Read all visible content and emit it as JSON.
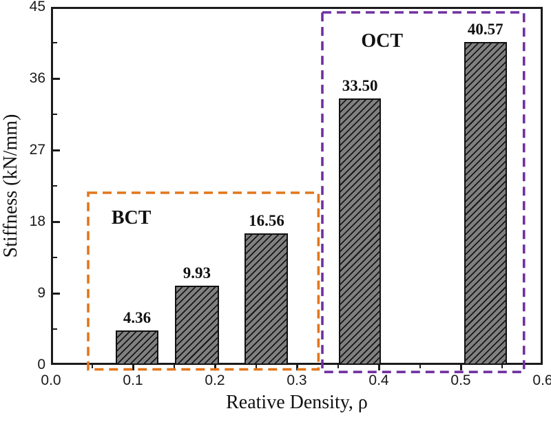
{
  "figure": {
    "background": "#ffffff",
    "frame_color": "#1a1a1a"
  },
  "chart_data": {
    "type": "bar",
    "title": "",
    "xlabel": "Reative Density, ρ",
    "ylabel": "Stiffness (kN/mm)",
    "xlim": [
      0.0,
      0.6
    ],
    "ylim": [
      0,
      45
    ],
    "grid": false,
    "legend": "none",
    "x_tick_values": [
      0.0,
      0.1,
      0.2,
      0.3,
      0.4,
      0.5,
      0.6
    ],
    "x_tick_labels": [
      "0.0",
      "0.1",
      "0.2",
      "0.3",
      "0.4",
      "0.5",
      "0.6"
    ],
    "x_minor_tick_values": [
      0.05,
      0.15,
      0.25,
      0.35,
      0.45,
      0.55
    ],
    "y_tick_values": [
      0,
      9,
      18,
      27,
      36,
      45
    ],
    "y_tick_labels": [
      "0",
      "9",
      "18",
      "27",
      "36",
      "45"
    ],
    "y_minor_tick_values": [
      4.5,
      13.5,
      22.5,
      31.5,
      40.5
    ],
    "bars": [
      {
        "x": 0.105,
        "width": 0.052,
        "value": 4.36,
        "label": "4.36"
      },
      {
        "x": 0.178,
        "width": 0.054,
        "value": 9.93,
        "label": "9.93"
      },
      {
        "x": 0.263,
        "width": 0.053,
        "value": 16.56,
        "label": "16.56"
      },
      {
        "x": 0.377,
        "width": 0.051,
        "value": 33.5,
        "label": "33.50"
      },
      {
        "x": 0.53,
        "width": 0.052,
        "value": 40.57,
        "label": "40.57"
      }
    ],
    "bar_style": {
      "fill": "#808080",
      "edge": "#111111",
      "hatch": "forward-diagonal"
    },
    "groups": [
      {
        "label": "BCT",
        "color": "#E2761B",
        "x0": 0.045,
        "x1": 0.326,
        "y0": -0.6,
        "y1": 21.6,
        "label_pos": {
          "x": 0.098,
          "y": 18.4
        }
      },
      {
        "label": "OCT",
        "color": "#7030A0",
        "x0": 0.331,
        "x1": 0.577,
        "y0": -0.9,
        "y1": 44.3,
        "label_pos": {
          "x": 0.404,
          "y": 40.7
        }
      }
    ]
  }
}
